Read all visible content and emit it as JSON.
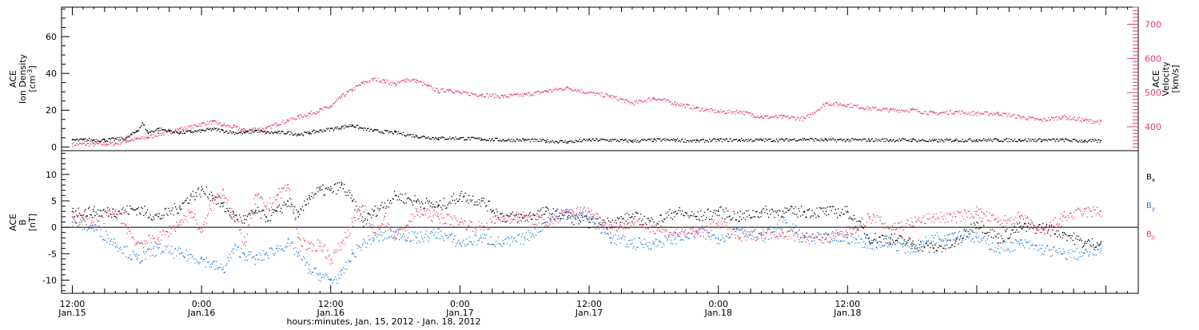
{
  "chart_data": [
    {
      "type": "scatter",
      "panel": "top",
      "ylabel": {
        "line1": "ACE",
        "line2": "Ion Density",
        "line3_pre": "[cm",
        "line3_sup": "-3",
        "line3_post": "]"
      },
      "ylabel_right": {
        "line1": "ACE",
        "line2": "Velocity",
        "line3": "[km/s]"
      },
      "ylim": [
        -2,
        76
      ],
      "ylim_right": [
        330,
        750
      ],
      "yticks": [
        0,
        20,
        40,
        60
      ],
      "yticks_right": [
        400,
        500,
        600,
        700
      ],
      "colors": {
        "density": "#000000",
        "velocity": "#e8396a"
      },
      "series": [
        {
          "axis": "left",
          "color": "#000000",
          "x": [
            0,
            1,
            2,
            3,
            4,
            5,
            5.5,
            6,
            6.5,
            7,
            8,
            9,
            10,
            11,
            12,
            13,
            14,
            15,
            16,
            17,
            18,
            19,
            20,
            21,
            22,
            23,
            24,
            25,
            26,
            27,
            28,
            30,
            32,
            34,
            36,
            38,
            40,
            42,
            44,
            46,
            48,
            50,
            52,
            54,
            56,
            58,
            60,
            62,
            64,
            66,
            68,
            70,
            72,
            74,
            76,
            78,
            80,
            82,
            84,
            86,
            88,
            90,
            92,
            94,
            95.5
          ],
          "values": [
            4,
            4,
            4,
            4,
            4.5,
            5,
            7,
            9,
            13,
            8,
            10,
            9,
            8,
            8.5,
            9,
            10,
            9,
            8,
            8,
            9,
            8,
            8,
            8,
            7,
            8,
            9,
            10,
            11,
            12,
            10,
            9,
            8,
            6,
            5,
            5,
            4.5,
            4,
            4,
            3.5,
            3,
            4,
            4,
            3.5,
            4,
            4,
            3.5,
            4,
            4,
            4,
            4,
            4.5,
            4,
            4,
            4,
            4,
            4,
            3.5,
            4,
            4,
            4,
            4,
            4,
            4,
            3.5,
            3.5
          ]
        },
        {
          "axis": "right",
          "color": "#e8396a",
          "x": [
            0,
            2,
            4,
            5,
            6,
            7,
            8,
            9,
            10,
            11,
            12,
            13,
            14,
            15,
            16,
            17,
            18,
            19,
            20,
            21,
            22,
            23,
            24,
            25,
            26,
            27,
            28,
            29,
            30,
            31,
            32,
            33,
            34,
            35,
            36,
            38,
            40,
            42,
            44,
            46,
            48,
            50,
            52,
            54,
            56,
            58,
            60,
            62,
            64,
            66,
            68,
            70,
            72,
            74,
            76,
            78,
            80,
            82,
            84,
            86,
            88,
            90,
            92,
            94,
            95.5
          ],
          "values": [
            350,
            350,
            352,
            360,
            365,
            370,
            380,
            385,
            395,
            400,
            410,
            415,
            405,
            400,
            390,
            395,
            395,
            410,
            420,
            430,
            440,
            450,
            460,
            490,
            510,
            530,
            540,
            535,
            525,
            540,
            535,
            520,
            505,
            510,
            500,
            495,
            490,
            495,
            505,
            515,
            500,
            490,
            470,
            485,
            470,
            455,
            445,
            445,
            430,
            430,
            425,
            470,
            465,
            455,
            450,
            450,
            440,
            445,
            440,
            440,
            430,
            420,
            430,
            420,
            415
          ]
        }
      ]
    },
    {
      "type": "scatter",
      "panel": "bottom",
      "ylabel": {
        "line1": "ACE",
        "line2": "B",
        "line3": "[nT]"
      },
      "ylim": [
        -12.5,
        14.5
      ],
      "yticks": [
        -10,
        -5,
        0,
        5,
        10
      ],
      "zero_line": true,
      "legend_position": "right",
      "series": [
        {
          "name_base": "B",
          "name_sub": "x",
          "color": "#000000",
          "x": [
            0,
            2,
            4,
            6,
            8,
            10,
            11,
            12,
            13,
            14,
            15,
            16,
            17,
            18,
            19,
            20,
            21,
            22,
            23,
            24,
            25,
            26,
            27,
            28,
            30,
            32,
            34,
            36,
            38,
            40,
            42,
            44,
            46,
            48,
            50,
            52,
            54,
            56,
            58,
            60,
            62,
            64,
            66,
            68,
            70,
            72,
            74,
            76,
            78,
            80,
            82,
            84,
            86,
            88,
            90,
            92,
            94,
            95.5
          ],
          "values": [
            3,
            3,
            3,
            3.5,
            2,
            4,
            6,
            7,
            6,
            4,
            2,
            1.5,
            3,
            2,
            3,
            5,
            2,
            6,
            7,
            7,
            8,
            5,
            1,
            3,
            6,
            5,
            4,
            6,
            5,
            2,
            2,
            3,
            2,
            1,
            1,
            2,
            1,
            3,
            2,
            3,
            2,
            3,
            3,
            3,
            3,
            3,
            -2,
            -2,
            -3,
            -4,
            -3,
            1,
            -2,
            0,
            0,
            -1,
            -3,
            -3
          ]
        },
        {
          "name_base": "B",
          "name_sub": "y",
          "color": "#1e7fd8",
          "x": [
            0,
            2,
            4,
            6,
            8,
            10,
            12,
            13,
            14,
            15,
            16,
            17,
            18,
            19,
            20,
            21,
            22,
            23,
            24,
            25,
            26,
            27,
            28,
            30,
            32,
            34,
            36,
            38,
            40,
            42,
            44,
            46,
            48,
            50,
            52,
            54,
            56,
            58,
            60,
            62,
            64,
            66,
            68,
            70,
            72,
            74,
            76,
            78,
            80,
            82,
            84,
            86,
            88,
            90,
            92,
            94,
            95.5
          ],
          "values": [
            1,
            0,
            -3,
            -6,
            -4,
            -5,
            -6,
            -7,
            -8,
            -4,
            -5,
            -6,
            -5,
            -4,
            -3,
            -5,
            -8,
            -9,
            -10,
            -9,
            -5,
            -3,
            -2,
            -1,
            -2,
            -1,
            -3,
            -2,
            -3,
            -2,
            1,
            3,
            2,
            -2,
            -3,
            -3,
            -2,
            -1,
            -2,
            0,
            -2,
            1,
            -2,
            -2,
            -2,
            -3,
            -3,
            -4,
            -2,
            -1,
            -2,
            -4,
            -3,
            -4,
            -5,
            -5,
            -4
          ]
        },
        {
          "name_base": "B",
          "name_sub": "z",
          "color": "#e8396a",
          "x": [
            0,
            2,
            4,
            6,
            8,
            10,
            11,
            12,
            13,
            14,
            15,
            16,
            17,
            18,
            19,
            20,
            21,
            22,
            23,
            24,
            25,
            26,
            27,
            28,
            29,
            30,
            32,
            34,
            36,
            38,
            40,
            42,
            44,
            46,
            48,
            50,
            52,
            54,
            56,
            58,
            60,
            62,
            64,
            66,
            68,
            70,
            72,
            74,
            76,
            78,
            80,
            82,
            84,
            86,
            88,
            90,
            92,
            94,
            95.5
          ],
          "values": [
            2,
            1,
            3,
            -3,
            -2,
            1,
            3,
            -1,
            5,
            7,
            2,
            -3,
            6,
            4,
            6,
            8,
            -2,
            -4,
            -3,
            -6,
            -3,
            1,
            4,
            -1,
            2,
            -2,
            3,
            2,
            1,
            0,
            2,
            2,
            1,
            3,
            3,
            0,
            1,
            0,
            -1,
            -1,
            1,
            -2,
            -1,
            -1,
            -2,
            -2,
            -1,
            2,
            0,
            1,
            2,
            2,
            3,
            1,
            2,
            -1,
            2,
            3,
            3
          ]
        }
      ]
    }
  ],
  "x_axis": {
    "xlim": [
      -1,
      99
    ],
    "major_ticks": [
      {
        "x": 0,
        "time": "12:00",
        "date": "Jan.15"
      },
      {
        "x": 12,
        "time": "0:00",
        "date": "Jan.16"
      },
      {
        "x": 24,
        "time": "12:00",
        "date": "Jan.16"
      },
      {
        "x": 36,
        "time": "0:00",
        "date": "Jan.17"
      },
      {
        "x": 48,
        "time": "12:00",
        "date": "Jan.17"
      },
      {
        "x": 60,
        "time": "0:00",
        "date": "Jan.18"
      },
      {
        "x": 72,
        "time": "12:00",
        "date": "Jan.18"
      }
    ],
    "title": "hours:minutes, Jan. 15, 2012 - Jan. 18, 2012"
  }
}
